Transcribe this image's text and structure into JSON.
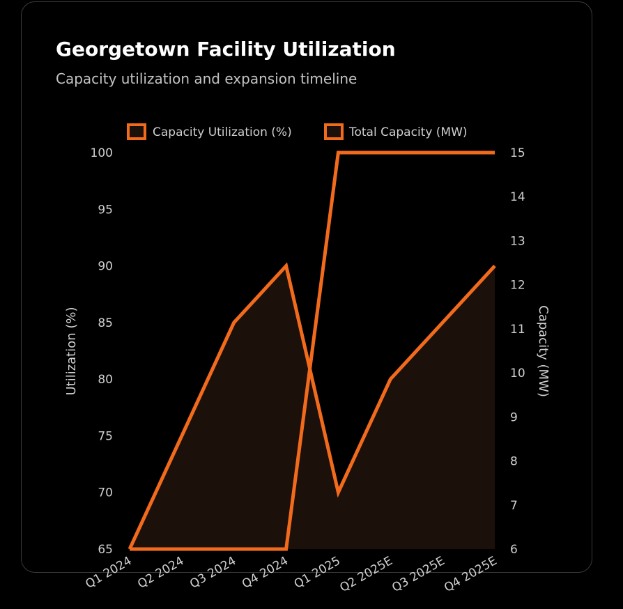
{
  "header": {
    "title": "Georgetown Facility Utilization",
    "subtitle": "Capacity utilization and expansion timeline"
  },
  "colors": {
    "series": "#f26b1d",
    "fill": "#1c100a",
    "background": "#000000",
    "text": "#d0d0d0"
  },
  "chart_data": {
    "type": "line",
    "title": "Georgetown Facility Utilization",
    "subtitle": "Capacity utilization and expansion timeline",
    "categories": [
      "Q1 2024",
      "Q2 2024",
      "Q3 2024",
      "Q4 2024",
      "Q1 2025",
      "Q2 2025E",
      "Q3 2025E",
      "Q4 2025E"
    ],
    "series": [
      {
        "name": "Capacity Utilization (%)",
        "axis": "left",
        "fill": true,
        "values": [
          65,
          75,
          85,
          90,
          70,
          80,
          85,
          90
        ]
      },
      {
        "name": "Total Capacity (MW)",
        "axis": "right",
        "fill": false,
        "values": [
          6,
          6,
          6,
          6,
          15,
          15,
          15,
          15
        ]
      }
    ],
    "y_left": {
      "label": "Utilization (%)",
      "range": [
        65,
        100
      ],
      "ticks": [
        65,
        70,
        75,
        80,
        85,
        90,
        95,
        100
      ]
    },
    "y_right": {
      "label": "Capacity (MW)",
      "range": [
        6,
        15
      ],
      "ticks": [
        6,
        7,
        8,
        9,
        10,
        11,
        12,
        13,
        14,
        15
      ]
    },
    "grid": false,
    "legend_position": "top-center"
  }
}
